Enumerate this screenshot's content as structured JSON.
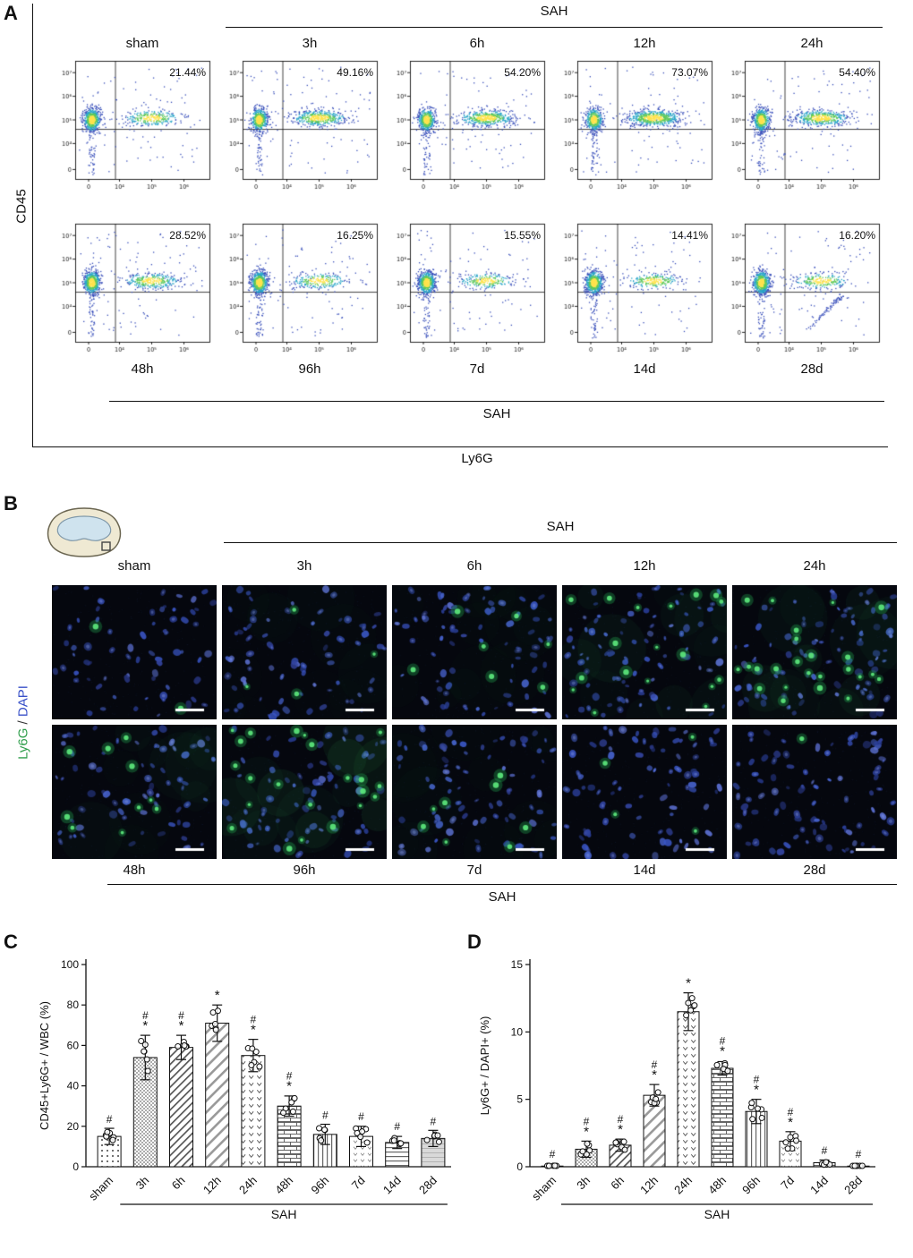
{
  "panelA": {
    "label": "A",
    "sah_top": "SAH",
    "sah_bottom": "SAH",
    "y_axis": "CD45",
    "x_axis": "Ly6G",
    "x_ticks": [
      "0",
      "10⁴",
      "10⁵",
      "10⁶"
    ],
    "y_ticks": [
      "0",
      "10⁴",
      "10⁵",
      "10⁶",
      "10⁷"
    ],
    "plots": [
      {
        "label": "sham",
        "percent": "21.44%"
      },
      {
        "label": "3h",
        "percent": "49.16%"
      },
      {
        "label": "6h",
        "percent": "54.20%"
      },
      {
        "label": "12h",
        "percent": "73.07%"
      },
      {
        "label": "24h",
        "percent": "54.40%"
      },
      {
        "label": "48h",
        "percent": "28.52%"
      },
      {
        "label": "96h",
        "percent": "16.25%"
      },
      {
        "label": "7d",
        "percent": "15.55%"
      },
      {
        "label": "14d",
        "percent": "14.41%"
      },
      {
        "label": "28d",
        "percent": "16.20%",
        "diag_tail": true
      }
    ]
  },
  "panelB": {
    "label": "B",
    "sah_top": "SAH",
    "sah_bottom": "SAH",
    "stain_label": {
      "marker": "Ly6G",
      "sep": " / ",
      "counter": "DAPI"
    },
    "colors": {
      "marker": "#2f9e4b",
      "counter": "#3850c8"
    },
    "images": [
      {
        "label": "sham",
        "green": 2,
        "haze": 0
      },
      {
        "label": "3h",
        "green": 4,
        "haze": 0.02
      },
      {
        "label": "6h",
        "green": 7,
        "haze": 0.02
      },
      {
        "label": "12h",
        "green": 18,
        "haze": 0.05
      },
      {
        "label": "24h",
        "green": 24,
        "haze": 0.05
      },
      {
        "label": "48h",
        "green": 10,
        "haze": 0.03
      },
      {
        "label": "96h",
        "green": 22,
        "haze": 0.08
      },
      {
        "label": "7d",
        "green": 8,
        "haze": 0.02
      },
      {
        "label": "14d",
        "green": 4,
        "haze": 0
      },
      {
        "label": "28d",
        "green": 1,
        "haze": 0
      }
    ]
  },
  "chart_data": [
    {
      "panel_label": "C",
      "id": "C",
      "type": "bar",
      "ylabel": "CD45+Ly6G+ / WBC (%)",
      "ylim": [
        0,
        100
      ],
      "yticks": [
        0,
        20,
        40,
        60,
        80,
        100
      ],
      "categories": [
        "sham",
        "3h",
        "6h",
        "12h",
        "24h",
        "48h",
        "96h",
        "7d",
        "14d",
        "28d"
      ],
      "values": [
        15,
        54,
        59,
        71,
        55,
        30,
        16,
        15,
        12,
        14
      ],
      "errors": [
        4,
        11,
        6,
        9,
        8,
        5,
        5,
        5,
        3,
        4
      ],
      "annotations": [
        [
          "#"
        ],
        [
          "#",
          "*"
        ],
        [
          "#",
          "*"
        ],
        [
          "*"
        ],
        [
          "#",
          "*"
        ],
        [
          "#",
          "*"
        ],
        [
          "#"
        ],
        [
          "#"
        ],
        [
          "#"
        ],
        [
          "#"
        ]
      ],
      "group_label": "SAH",
      "group_from": "3h",
      "group_to": "28d",
      "patterns": [
        "dots",
        "checker",
        "diag",
        "diag2",
        "vee",
        "brick",
        "vert",
        "vee2",
        "horiz",
        "grayh"
      ]
    },
    {
      "panel_label": "D",
      "id": "D",
      "type": "bar",
      "ylabel": "Ly6G+ / DAPI+ (%)",
      "ylim": [
        0,
        15
      ],
      "yticks": [
        0,
        5,
        10,
        15
      ],
      "categories": [
        "sham",
        "3h",
        "6h",
        "12h",
        "24h",
        "48h",
        "96h",
        "7d",
        "14d",
        "28d"
      ],
      "values": [
        0.05,
        1.3,
        1.6,
        5.3,
        11.5,
        7.3,
        4.1,
        1.9,
        0.3,
        0.05
      ],
      "errors": [
        0.05,
        0.6,
        0.45,
        0.8,
        1.4,
        0.5,
        0.9,
        0.7,
        0.2,
        0.03
      ],
      "annotations": [
        [
          "#"
        ],
        [
          "#",
          "*"
        ],
        [
          "#",
          "*"
        ],
        [
          "#",
          "*"
        ],
        [
          "*"
        ],
        [
          "#",
          "*"
        ],
        [
          "#",
          "*"
        ],
        [
          "#",
          "*"
        ],
        [
          "#"
        ],
        [
          "#"
        ]
      ],
      "group_label": "SAH",
      "group_from": "3h",
      "group_to": "28d",
      "patterns": [
        "dots",
        "checker",
        "diag",
        "diag2",
        "vee",
        "brick",
        "vert",
        "vee2",
        "horiz",
        "grayh"
      ]
    }
  ]
}
